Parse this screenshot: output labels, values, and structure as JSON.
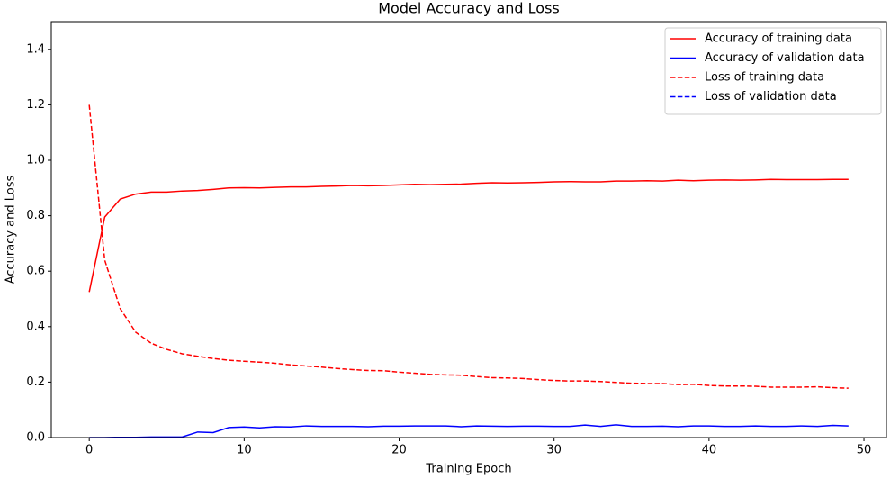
{
  "chart_data": {
    "type": "line",
    "title": "Model Accuracy and Loss",
    "xlabel": "Training Epoch",
    "ylabel": "Accuracy and Loss",
    "x": [
      0,
      1,
      2,
      3,
      4,
      5,
      6,
      7,
      8,
      9,
      10,
      11,
      12,
      13,
      14,
      15,
      16,
      17,
      18,
      19,
      20,
      21,
      22,
      23,
      24,
      25,
      26,
      27,
      28,
      29,
      30,
      31,
      32,
      33,
      34,
      35,
      36,
      37,
      38,
      39,
      40,
      41,
      42,
      43,
      44,
      45,
      46,
      47,
      48,
      49
    ],
    "series": [
      {
        "name": "Accuracy of training data",
        "color": "#ff0000",
        "linestyle": "solid",
        "values": [
          0.525,
          0.795,
          0.86,
          0.878,
          0.885,
          0.885,
          0.889,
          0.891,
          0.895,
          0.9,
          0.901,
          0.9,
          0.902,
          0.904,
          0.904,
          0.906,
          0.907,
          0.909,
          0.908,
          0.909,
          0.911,
          0.913,
          0.912,
          0.913,
          0.914,
          0.917,
          0.919,
          0.918,
          0.919,
          0.92,
          0.922,
          0.923,
          0.922,
          0.922,
          0.925,
          0.925,
          0.926,
          0.925,
          0.928,
          0.926,
          0.928,
          0.929,
          0.928,
          0.929,
          0.931,
          0.93,
          0.93,
          0.93,
          0.931,
          0.931
        ]
      },
      {
        "name": "Accuracy of validation data",
        "color": "#0000ff",
        "linestyle": "solid",
        "values": [
          0,
          0,
          0.001,
          0.001,
          0.002,
          0.002,
          0.002,
          0.02,
          0.018,
          0.036,
          0.038,
          0.035,
          0.039,
          0.038,
          0.042,
          0.04,
          0.04,
          0.04,
          0.039,
          0.041,
          0.041,
          0.042,
          0.042,
          0.042,
          0.039,
          0.042,
          0.041,
          0.04,
          0.041,
          0.041,
          0.04,
          0.04,
          0.045,
          0.04,
          0.046,
          0.04,
          0.04,
          0.041,
          0.039,
          0.042,
          0.042,
          0.04,
          0.04,
          0.042,
          0.04,
          0.04,
          0.042,
          0.04,
          0.044,
          0.042
        ]
      },
      {
        "name": "Loss of training data",
        "color": "#ff0000",
        "linestyle": "dashed",
        "values": [
          1.2,
          0.64,
          0.465,
          0.38,
          0.34,
          0.318,
          0.302,
          0.293,
          0.285,
          0.279,
          0.275,
          0.272,
          0.268,
          0.262,
          0.258,
          0.254,
          0.249,
          0.245,
          0.242,
          0.241,
          0.236,
          0.232,
          0.228,
          0.226,
          0.225,
          0.22,
          0.216,
          0.215,
          0.213,
          0.209,
          0.206,
          0.204,
          0.204,
          0.202,
          0.199,
          0.196,
          0.195,
          0.195,
          0.191,
          0.192,
          0.188,
          0.186,
          0.186,
          0.185,
          0.182,
          0.182,
          0.182,
          0.183,
          0.18,
          0.178
        ]
      },
      {
        "name": "Loss of validation data",
        "color": "#0000ff",
        "linestyle": "dashed",
        "values": [
          null,
          null,
          null,
          null,
          null,
          null,
          null,
          null,
          null,
          null,
          null,
          null,
          null,
          null,
          null,
          null,
          null,
          null,
          null,
          null,
          null,
          null,
          null,
          null,
          null,
          null,
          null,
          null,
          null,
          null,
          null,
          null,
          null,
          null,
          null,
          null,
          null,
          null,
          null,
          null,
          null,
          null,
          null,
          null,
          null,
          null,
          null,
          null,
          null,
          null
        ]
      }
    ],
    "xlim": [
      -2.45,
      51.45
    ],
    "xticks": [
      0,
      10,
      20,
      30,
      40,
      50
    ],
    "ylim": [
      0,
      1.5
    ],
    "yticks": [
      {
        "value": 0,
        "label": "0.0"
      },
      0.2,
      0.4,
      0.6,
      0.8,
      {
        "value": 1,
        "label": "1.0"
      },
      1.2,
      1.4
    ],
    "legend": "upper right"
  }
}
